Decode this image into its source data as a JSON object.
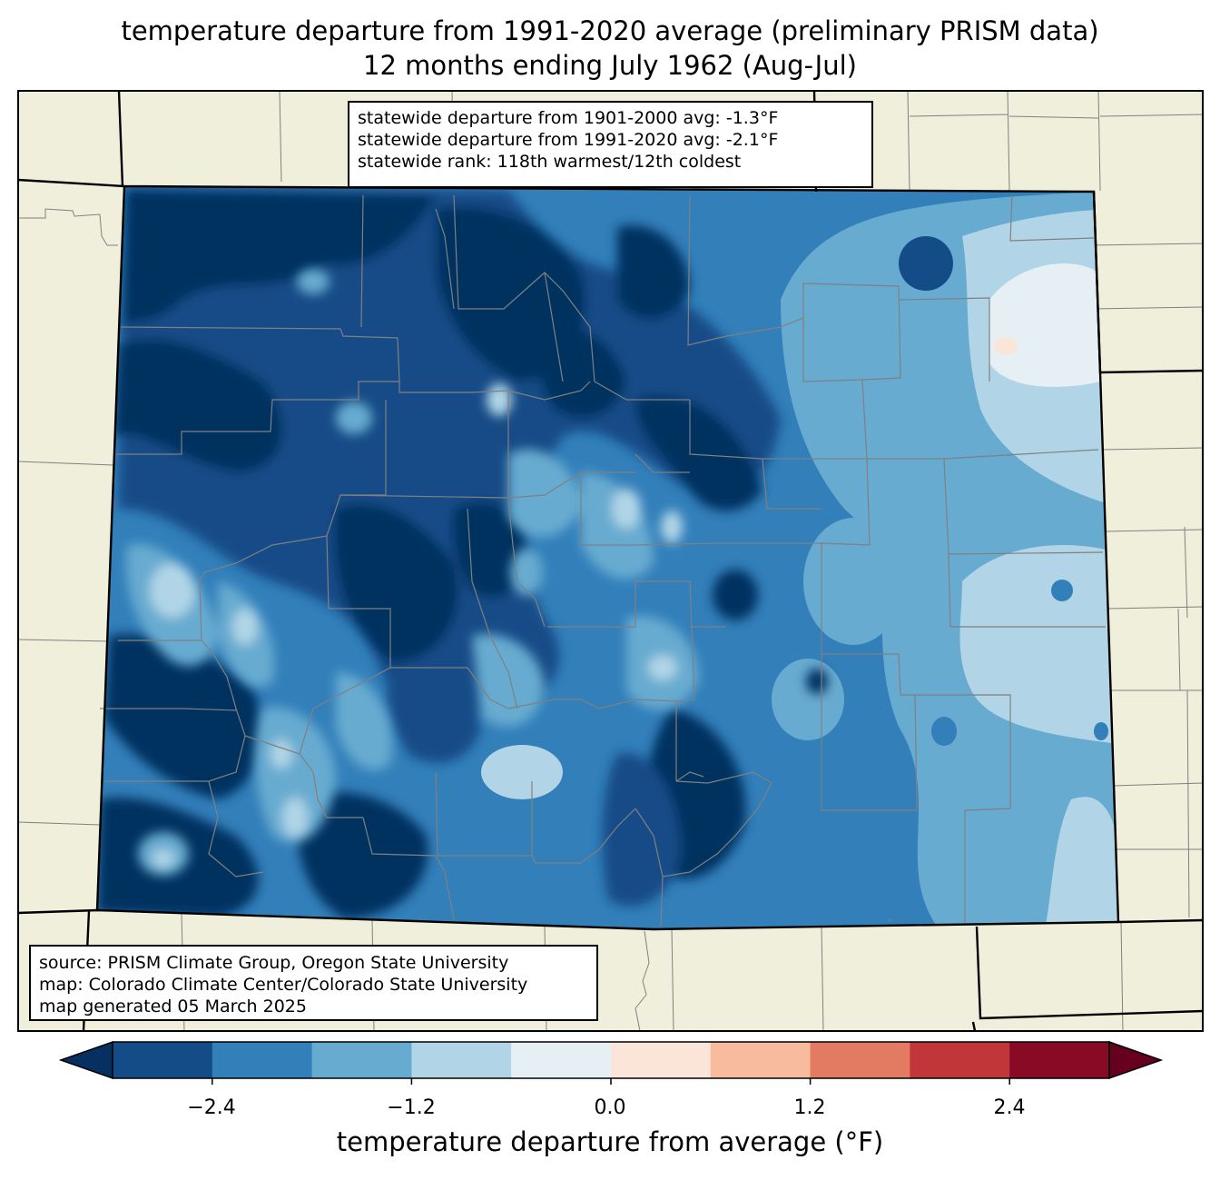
{
  "title": {
    "line1": "temperature departure from 1991-2020 average (preliminary PRISM data)",
    "line2": "12 months ending July 1962 (Aug-Jul)"
  },
  "stats": {
    "line1": "statewide departure from 1901-2000 avg: -1.3°F",
    "line2": "statewide departure from 1991-2020 avg: -2.1°F",
    "line3": "statewide rank: 118th warmest/12th coldest"
  },
  "source": {
    "line1": "source: PRISM Climate Group, Oregon State University",
    "line2": "map: Colorado Climate Center/Colorado State University",
    "line3": "map generated 05 March 2025"
  },
  "colorbar": {
    "label": "temperature departure from average (°F)",
    "ticks": [
      "−2.4",
      "−1.2",
      "0.0",
      "1.2",
      "2.4"
    ],
    "bins": [
      -3.0,
      -2.4,
      -1.8,
      -1.2,
      -0.6,
      0.0,
      0.6,
      1.2,
      1.8,
      2.4,
      3.0
    ],
    "colors": [
      "#053061",
      "#134c87",
      "#327fba",
      "#68abd0",
      "#b1d5e7",
      "#e6eff4",
      "#fbe5d8",
      "#f8bb9e",
      "#e27b62",
      "#c13639",
      "#890a25",
      "#67001f"
    ]
  },
  "colors": {
    "land": "#efefdb",
    "county_lines": "#808080",
    "state_lines": "#000000"
  }
}
